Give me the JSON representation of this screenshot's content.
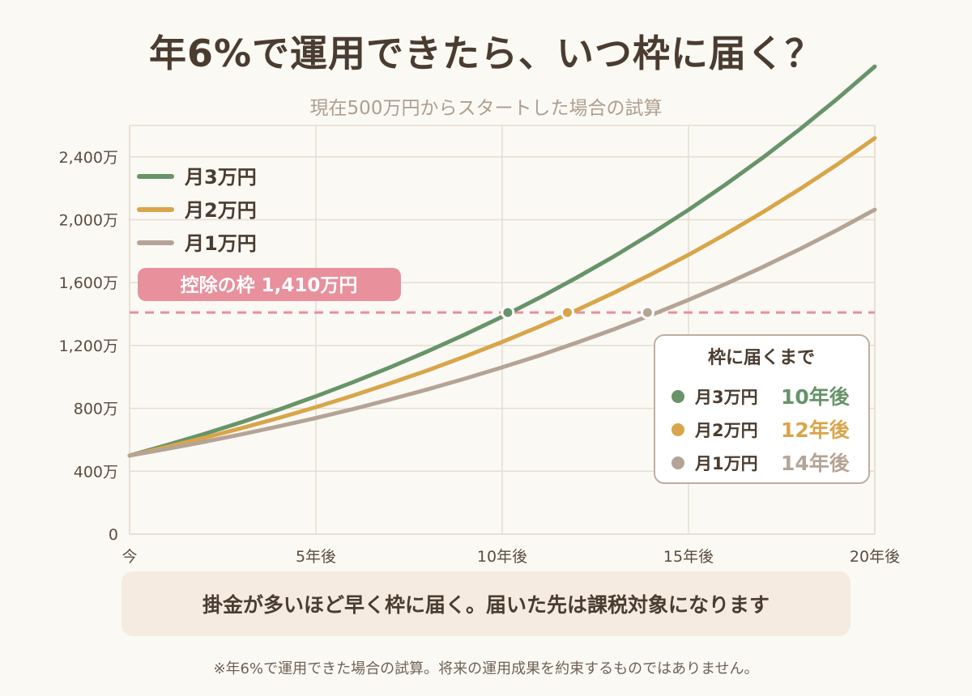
{
  "title": "年6%で運用できたら、いつ枠に届く？",
  "subtitle": "現在500万円からスタートした場合の試算",
  "conclusion": "掛金が多いほど早く枠に届く。届いた先は課税対象になります",
  "footnote": "※年6%で運用できた場合の試算。将来の運用成果を約束するものではありません。",
  "threshold": {
    "label": "控除の枠 1,410万円",
    "value": 1410,
    "color": "#e8909c"
  },
  "reach_box": {
    "title": "枠に届くまで",
    "rows": [
      {
        "label": "月3万円",
        "result": "10年後",
        "color": "#679469"
      },
      {
        "label": "月2万円",
        "result": "12年後",
        "color": "#d8a54a"
      },
      {
        "label": "月1万円",
        "result": "14年後",
        "color": "#b5a496"
      }
    ]
  },
  "chart_data": {
    "type": "line",
    "xlabel": "",
    "ylabel": "",
    "x_ticks": [
      {
        "value": 0,
        "label": "今"
      },
      {
        "value": 5,
        "label": "5年後"
      },
      {
        "value": 10,
        "label": "10年後"
      },
      {
        "value": 15,
        "label": "15年後"
      },
      {
        "value": 20,
        "label": "20年後"
      }
    ],
    "y_ticks": [
      {
        "value": 0,
        "label": "0"
      },
      {
        "value": 400,
        "label": "400万"
      },
      {
        "value": 800,
        "label": "800万"
      },
      {
        "value": 1200,
        "label": "1,200万"
      },
      {
        "value": 1600,
        "label": "1,600万"
      },
      {
        "value": 2000,
        "label": "2,000万"
      },
      {
        "value": 2400,
        "label": "2,400万"
      }
    ],
    "xlim": [
      0,
      20
    ],
    "ylim": [
      0,
      2600
    ],
    "grid": true,
    "legend_position": "top-left",
    "x": [
      0,
      1,
      2,
      3,
      4,
      5,
      6,
      7,
      8,
      9,
      10,
      11,
      12,
      13,
      14,
      15,
      16,
      17,
      18,
      19,
      20
    ],
    "series": [
      {
        "name": "月3万円",
        "color": "#679469",
        "values": [
          500,
          567,
          637,
          712,
          792,
          877,
          967,
          1062,
          1163,
          1270,
          1383,
          1504,
          1632,
          1767,
          1911,
          2063,
          2225,
          2396,
          2578,
          2771,
          2975
        ],
        "crossing": {
          "x": 10.15,
          "y": 1410
        }
      },
      {
        "name": "月2万円",
        "color": "#d8a54a",
        "values": [
          500,
          555,
          612,
          674,
          739,
          808,
          882,
          960,
          1042,
          1130,
          1223,
          1321,
          1425,
          1536,
          1653,
          1777,
          1909,
          2049,
          2197,
          2353,
          2519
        ],
        "crossing": {
          "x": 11.75,
          "y": 1410
        }
      },
      {
        "name": "月1万円",
        "color": "#b5a496",
        "values": [
          500,
          542,
          587,
          635,
          686,
          739,
          796,
          857,
          921,
          989,
          1061,
          1137,
          1218,
          1303,
          1394,
          1490,
          1592,
          1700,
          1815,
          1936,
          2064
        ],
        "crossing": {
          "x": 13.9,
          "y": 1410
        }
      }
    ]
  }
}
